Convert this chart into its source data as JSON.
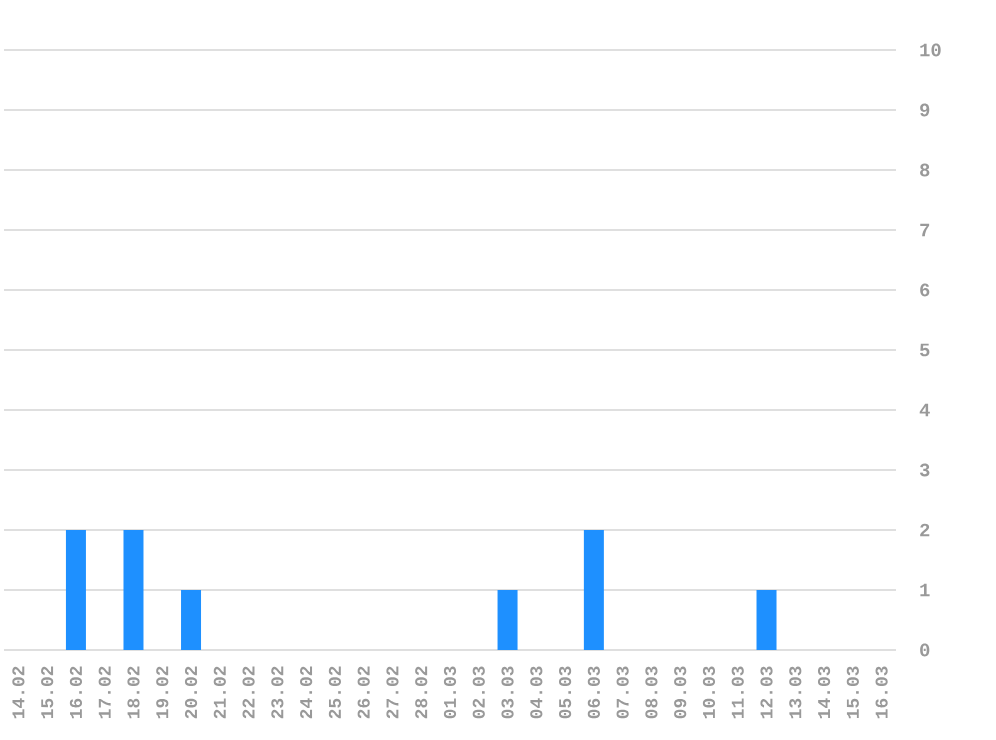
{
  "chart_data": {
    "type": "bar",
    "categories": [
      "14.02",
      "15.02",
      "16.02",
      "17.02",
      "18.02",
      "19.02",
      "20.02",
      "21.02",
      "22.02",
      "23.02",
      "24.02",
      "25.02",
      "26.02",
      "27.02",
      "28.02",
      "01.03",
      "02.03",
      "03.03",
      "04.03",
      "05.03",
      "06.03",
      "07.03",
      "08.03",
      "09.03",
      "10.03",
      "11.03",
      "12.03",
      "13.03",
      "14.03",
      "15.03",
      "16.03"
    ],
    "values": [
      0,
      0,
      2,
      0,
      2,
      0,
      1,
      0,
      0,
      0,
      0,
      0,
      0,
      0,
      0,
      0,
      0,
      1,
      0,
      0,
      2,
      0,
      0,
      0,
      0,
      0,
      1,
      0,
      0,
      0,
      0
    ],
    "color": "#1e90ff",
    "ylim": [
      0,
      10
    ],
    "yticks": [
      0,
      1,
      2,
      3,
      4,
      5,
      6,
      7,
      8,
      9,
      10
    ],
    "grid": "y"
  }
}
